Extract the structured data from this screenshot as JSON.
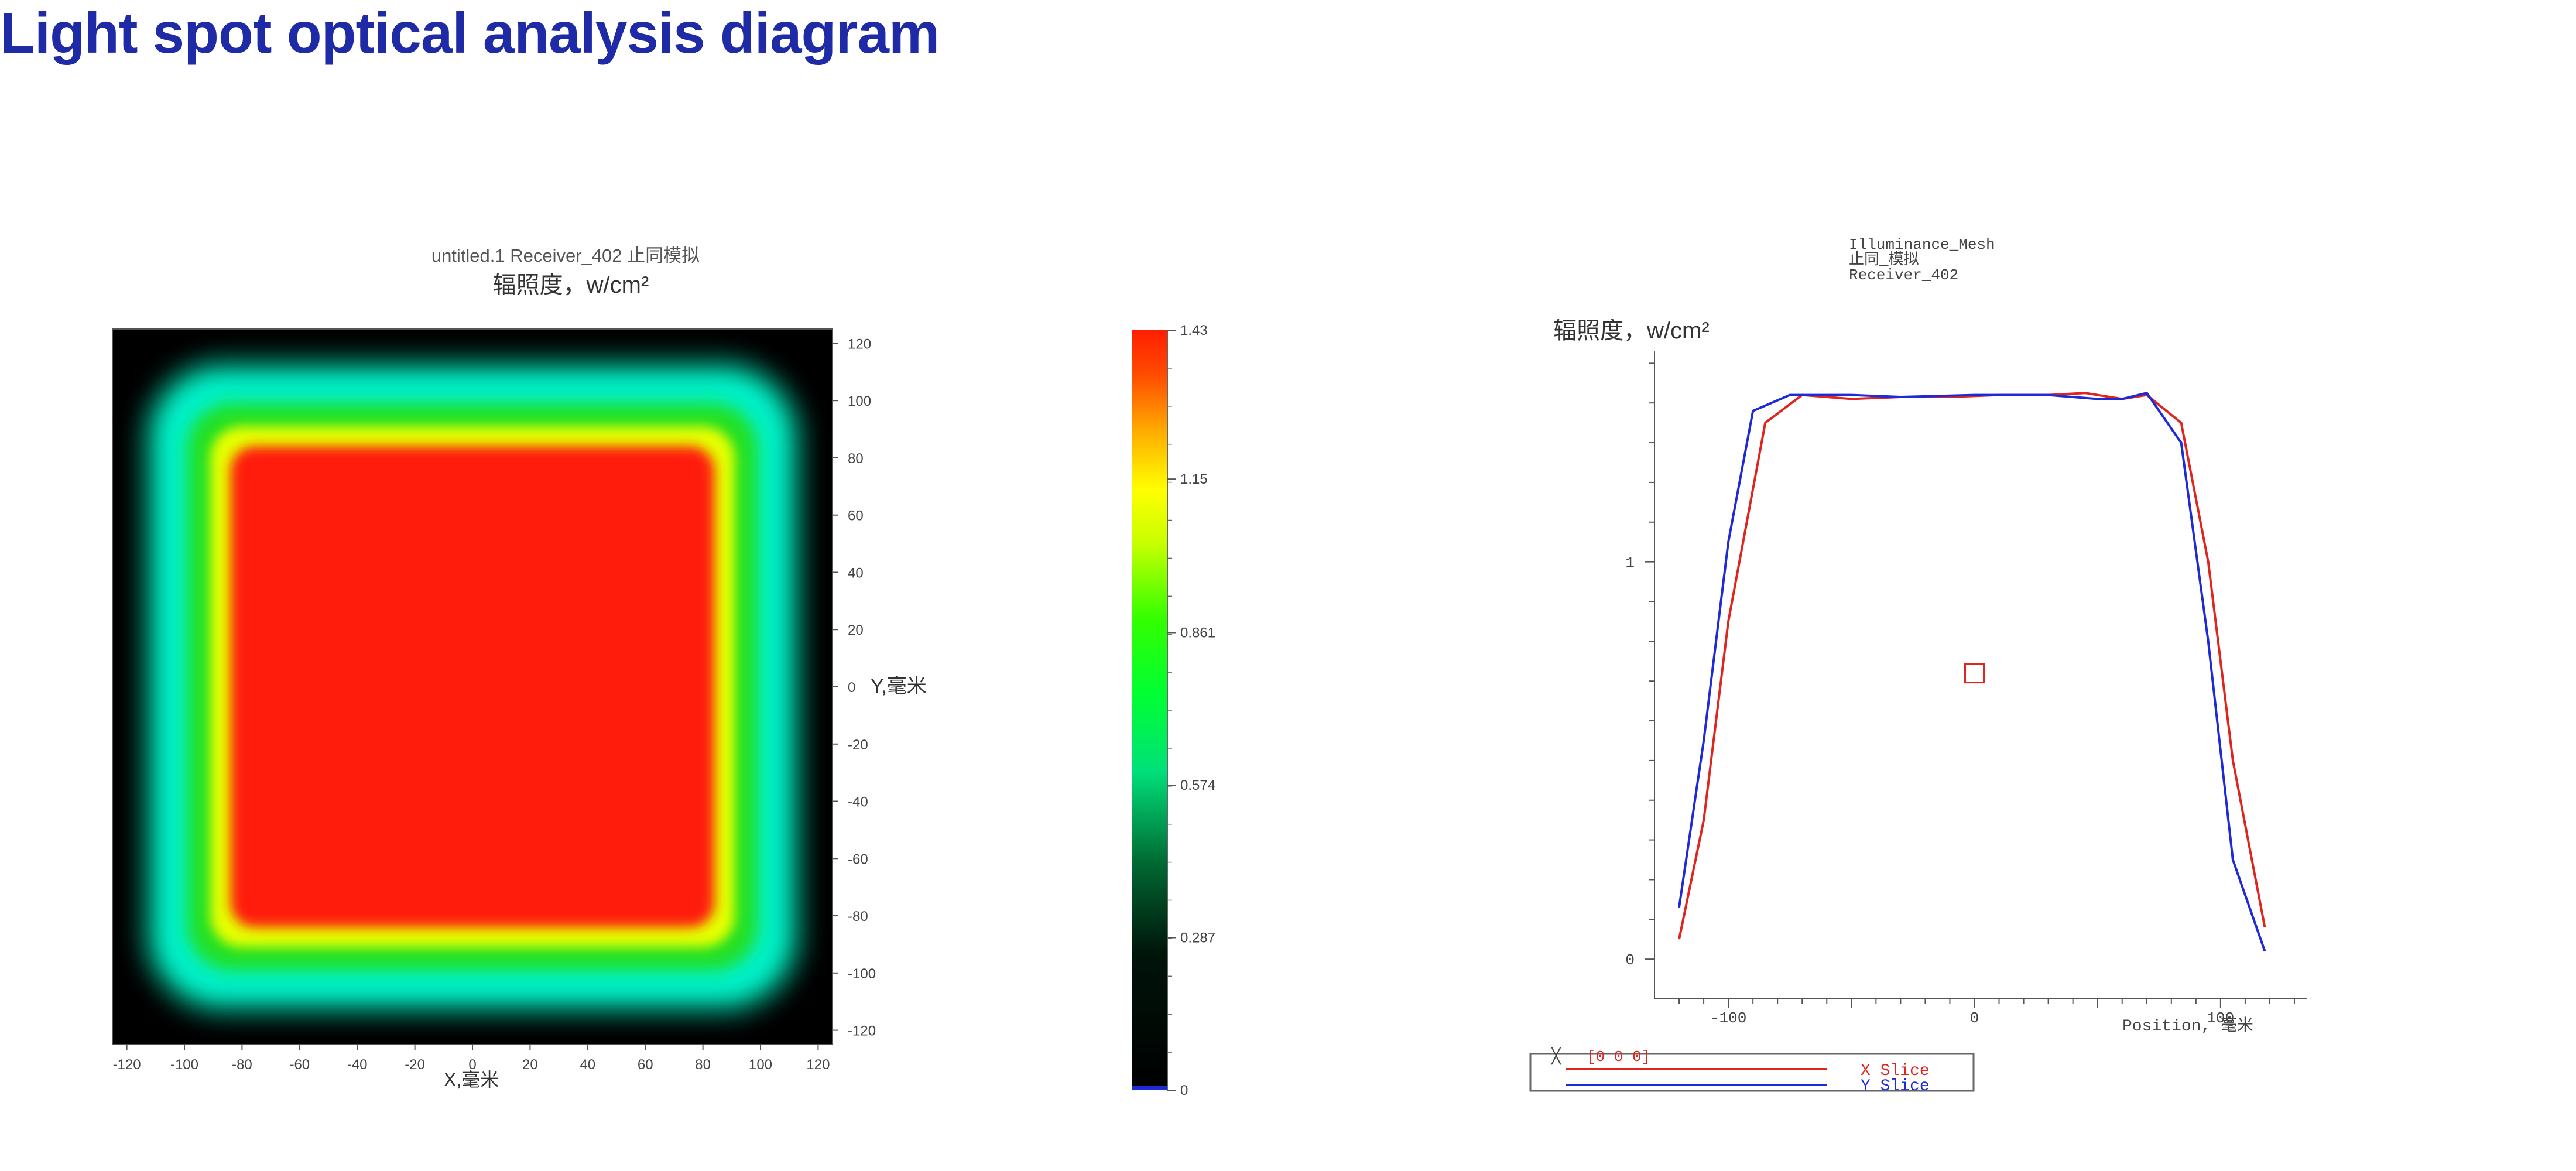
{
  "page": {
    "title": "Light spot optical analysis diagram"
  },
  "colors": {
    "title": "#1f2aa6",
    "x_slice": "#e0251f",
    "y_slice": "#1e2ad8",
    "axis": "#444444"
  },
  "chart_data": [
    {
      "type": "heatmap",
      "title": "untitled.1 Receiver_402 止同模拟",
      "subtitle": "辐照度，w/cm²",
      "xlabel": "X,毫米",
      "ylabel": "Y,毫米",
      "xlim": [
        -125,
        125
      ],
      "ylim": [
        -125,
        125
      ],
      "x_ticks": [
        -120,
        -100,
        -80,
        -60,
        -40,
        -20,
        0,
        20,
        40,
        60,
        80,
        100,
        120
      ],
      "y_ticks": [
        120,
        100,
        80,
        60,
        40,
        20,
        0,
        -20,
        -40,
        -60,
        -80,
        -100,
        -120
      ],
      "spot": {
        "shape": "rounded-square",
        "center": [
          0,
          0
        ],
        "plateau_half_width_mm": 85,
        "edge_half_width_mm": 108,
        "peak_value": 1.43
      },
      "colorbar": {
        "range": [
          0,
          1.43
        ],
        "tick_labels": [
          "1.43",
          "1.15",
          "0.861",
          "0.574",
          "0.287",
          "0"
        ],
        "tick_values": [
          1.43,
          1.15,
          0.861,
          0.574,
          0.287,
          0
        ],
        "colormap": "black-green-yellow-red"
      },
      "grid": false
    },
    {
      "type": "line",
      "title_lines": [
        "Illuminance_Mesh",
        "止同_模拟",
        "Receiver_402"
      ],
      "ylabel": "辐照度，w/cm²",
      "xlabel": "Position, 毫米",
      "xlim": [
        -130,
        135
      ],
      "ylim": [
        -0.1,
        1.53
      ],
      "x_tick_labels": [
        "-100",
        "0",
        "100"
      ],
      "x_tick_values": [
        -100,
        0,
        100
      ],
      "y_tick_labels": [
        "0",
        "1"
      ],
      "y_tick_values": [
        0,
        1
      ],
      "legend_position": "bottom-left",
      "legend_header": "[0 0 0]",
      "series": [
        {
          "name": "X Slice",
          "color": "#e0251f",
          "points": [
            [
              -120,
              0.05
            ],
            [
              -110,
              0.35
            ],
            [
              -100,
              0.85
            ],
            [
              -85,
              1.35
            ],
            [
              -70,
              1.42
            ],
            [
              -50,
              1.41
            ],
            [
              -30,
              1.415
            ],
            [
              -10,
              1.415
            ],
            [
              10,
              1.42
            ],
            [
              30,
              1.42
            ],
            [
              45,
              1.425
            ],
            [
              60,
              1.41
            ],
            [
              70,
              1.42
            ],
            [
              84,
              1.35
            ],
            [
              95,
              1.0
            ],
            [
              105,
              0.5
            ],
            [
              118,
              0.08
            ]
          ]
        },
        {
          "name": "Y Slice",
          "color": "#1e2ad8",
          "points": [
            [
              -120,
              0.13
            ],
            [
              -110,
              0.55
            ],
            [
              -100,
              1.05
            ],
            [
              -90,
              1.38
            ],
            [
              -75,
              1.42
            ],
            [
              -50,
              1.42
            ],
            [
              -30,
              1.415
            ],
            [
              0,
              1.42
            ],
            [
              30,
              1.42
            ],
            [
              50,
              1.41
            ],
            [
              60,
              1.41
            ],
            [
              70,
              1.425
            ],
            [
              84,
              1.3
            ],
            [
              95,
              0.8
            ],
            [
              105,
              0.25
            ],
            [
              118,
              0.02
            ]
          ]
        }
      ],
      "marker": {
        "shape": "square",
        "x": 0,
        "y": 0.72
      }
    }
  ]
}
